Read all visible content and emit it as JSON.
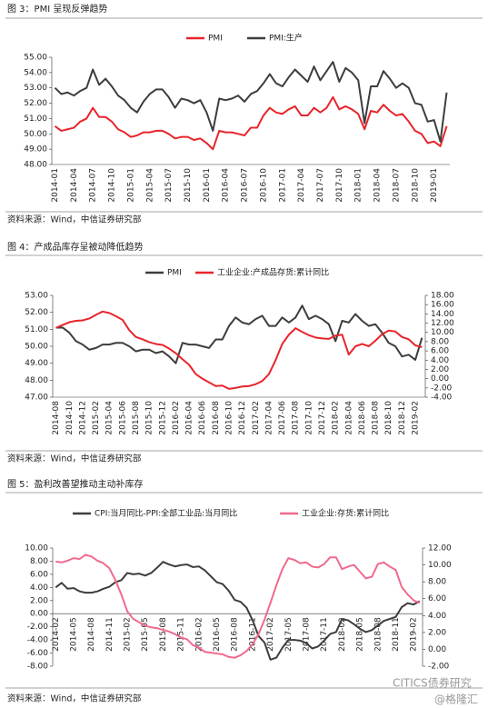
{
  "chart_data": [
    {
      "type": "line",
      "caption": "图 3：PMI 呈现反弹趋势",
      "source": "资料来源：Wind，中信证券研究部",
      "categories": [
        "2014-01",
        null,
        null,
        "2014-04",
        null,
        null,
        "2014-07",
        null,
        null,
        "2014-10",
        null,
        null,
        "2015-01",
        null,
        null,
        "2015-04",
        null,
        null,
        "2015-07",
        null,
        null,
        "2015-10",
        null,
        null,
        "2016-01",
        null,
        null,
        "2016-04",
        null,
        null,
        "2016-07",
        null,
        null,
        "2016-10",
        null,
        null,
        "2017-01",
        null,
        null,
        "2017-04",
        null,
        null,
        "2017-07",
        null,
        null,
        "2017-10",
        null,
        null,
        "2018-01",
        null,
        null,
        "2018-04",
        null,
        null,
        "2018-07",
        null,
        null,
        "2018-10",
        null,
        null,
        "2019-01",
        null,
        null
      ],
      "series": [
        {
          "name": "PMI",
          "color": "#e8242b",
          "values": [
            50.5,
            50.2,
            50.3,
            50.4,
            50.8,
            51.0,
            51.7,
            51.1,
            51.1,
            50.8,
            50.3,
            50.1,
            49.8,
            49.9,
            50.1,
            50.1,
            50.2,
            50.2,
            50.0,
            49.7,
            49.8,
            49.8,
            49.6,
            49.7,
            49.4,
            49.0,
            50.2,
            50.1,
            50.1,
            50.0,
            49.9,
            50.4,
            50.4,
            51.2,
            51.7,
            51.4,
            51.3,
            51.6,
            51.8,
            51.2,
            51.2,
            51.7,
            51.4,
            51.7,
            52.4,
            51.6,
            51.8,
            51.6,
            51.3,
            50.3,
            51.5,
            51.4,
            51.9,
            51.5,
            51.2,
            51.3,
            50.8,
            50.2,
            50.0,
            49.4,
            49.5,
            49.2,
            50.5
          ]
        },
        {
          "name": "PMI:生产",
          "color": "#3d3d3d",
          "values": [
            53.0,
            52.6,
            52.7,
            52.5,
            52.8,
            53.0,
            54.2,
            53.2,
            53.6,
            53.1,
            52.5,
            52.2,
            51.7,
            51.4,
            52.1,
            52.6,
            52.9,
            52.9,
            52.4,
            51.7,
            52.3,
            52.2,
            52.0,
            52.2,
            51.4,
            50.2,
            52.3,
            52.2,
            52.3,
            52.5,
            52.1,
            52.6,
            52.8,
            53.3,
            53.9,
            53.3,
            53.1,
            53.7,
            54.2,
            53.8,
            53.4,
            54.4,
            53.5,
            54.1,
            54.7,
            53.4,
            54.3,
            54.0,
            53.5,
            50.7,
            53.1,
            53.1,
            54.1,
            53.6,
            53.0,
            53.3,
            53.0,
            52.0,
            51.9,
            50.8,
            50.9,
            49.5,
            52.7
          ]
        }
      ],
      "ylim": [
        48,
        55
      ],
      "yticks": [
        {
          "value": 48,
          "label": "48.00"
        },
        {
          "value": 49,
          "label": "49.00"
        },
        {
          "value": 50,
          "label": "50.00"
        },
        {
          "value": 51,
          "label": "51.00"
        },
        {
          "value": 52,
          "label": "52.00"
        },
        {
          "value": 53,
          "label": "53.00"
        },
        {
          "value": 54,
          "label": "54.00"
        },
        {
          "value": 55,
          "label": "55.00"
        }
      ]
    },
    {
      "type": "line",
      "caption": "图 4：产成品库存呈被动降低趋势",
      "source": "资料来源：Wind，中信证券研究部",
      "categories": [
        "2014-08",
        null,
        "2014-10",
        null,
        "2014-12",
        null,
        "2015-02",
        null,
        "2015-04",
        null,
        "2015-06",
        null,
        "2015-08",
        null,
        "2015-10",
        null,
        "2015-12",
        null,
        "2016-02",
        null,
        "2016-04",
        null,
        "2016-06",
        null,
        "2016-08",
        null,
        "2016-10",
        null,
        "2016-12",
        null,
        "2017-02",
        null,
        "2017-04",
        null,
        "2017-06",
        null,
        "2017-08",
        null,
        "2017-10",
        null,
        "2017-12",
        null,
        "2018-02",
        null,
        "2018-04",
        null,
        "2018-06",
        null,
        "2018-08",
        null,
        "2018-10",
        null,
        "2018-12",
        null,
        "2019-02",
        null
      ],
      "series": [
        {
          "name": "PMI",
          "color": "#3d3d3d",
          "values": [
            51.1,
            51.1,
            50.8,
            50.3,
            50.1,
            49.8,
            49.9,
            50.1,
            50.1,
            50.2,
            50.2,
            50.0,
            49.7,
            49.8,
            49.8,
            49.6,
            49.7,
            49.4,
            49.0,
            50.2,
            50.1,
            50.1,
            50.0,
            49.9,
            50.4,
            50.4,
            51.2,
            51.7,
            51.4,
            51.3,
            51.6,
            51.8,
            51.2,
            51.2,
            51.7,
            51.4,
            51.7,
            52.4,
            51.6,
            51.8,
            51.6,
            51.3,
            50.3,
            51.5,
            51.4,
            51.9,
            51.5,
            51.2,
            51.3,
            50.8,
            50.2,
            50.0,
            49.4,
            49.5,
            49.2,
            50.5
          ]
        },
        {
          "name": "工业企业:产成品存货:累计同比",
          "color": "#e8242b",
          "axis": "y2",
          "values": [
            11.0,
            11.6,
            12.2,
            12.5,
            12.6,
            13.0,
            13.8,
            14.5,
            14.2,
            13.5,
            12.7,
            10.5,
            9.0,
            8.5,
            7.9,
            7.5,
            7.3,
            6.5,
            5.5,
            4.2,
            3.0,
            1.0,
            0.0,
            -0.8,
            -1.6,
            -1.5,
            -2.2,
            -2.0,
            -1.7,
            -1.6,
            -1.2,
            -0.5,
            1.0,
            4.0,
            7.5,
            9.5,
            10.9,
            10.1,
            9.4,
            8.9,
            8.7,
            8.6,
            9.3,
            9.5,
            5.2,
            7.0,
            7.5,
            7.0,
            8.2,
            9.6,
            10.4,
            10.2,
            9.0,
            8.5,
            7.2,
            6.8
          ]
        }
      ],
      "ylim": [
        47,
        53
      ],
      "yticks": [
        {
          "value": 47,
          "label": "47.00"
        },
        {
          "value": 48,
          "label": "48.00"
        },
        {
          "value": 49,
          "label": "49.00"
        },
        {
          "value": 50,
          "label": "50.00"
        },
        {
          "value": 51,
          "label": "51.00"
        },
        {
          "value": 52,
          "label": "52.00"
        },
        {
          "value": 53,
          "label": "53.00"
        }
      ],
      "y2lim": [
        -4,
        18
      ],
      "y2ticks": [
        {
          "value": -4,
          "label": "-4.00"
        },
        {
          "value": -2,
          "label": "-2.00"
        },
        {
          "value": 0,
          "label": "0.00"
        },
        {
          "value": 2,
          "label": "2.00"
        },
        {
          "value": 4,
          "label": "4.00"
        },
        {
          "value": 6,
          "label": "6.00"
        },
        {
          "value": 8,
          "label": "8.00"
        },
        {
          "value": 10,
          "label": "10.00"
        },
        {
          "value": 12,
          "label": "12.00"
        },
        {
          "value": 14,
          "label": "14.00"
        },
        {
          "value": 16,
          "label": "16.00"
        },
        {
          "value": 18,
          "label": "18.00"
        }
      ]
    },
    {
      "type": "line",
      "caption": "图 5：盈利改善望推动主动补库存",
      "source": "资料来源：Wind，中信证券研究部",
      "categories": [
        "2014-02",
        null,
        null,
        "2014-05",
        null,
        null,
        "2014-08",
        null,
        null,
        "2014-11",
        null,
        null,
        "2015-02",
        null,
        null,
        "2015-05",
        null,
        null,
        "2015-08",
        null,
        null,
        "2015-11",
        null,
        null,
        "2016-02",
        null,
        null,
        "2016-05",
        null,
        null,
        "2016-08",
        null,
        null,
        "2016-11",
        null,
        null,
        "2017-02",
        null,
        null,
        "2017-05",
        null,
        null,
        "2017-08",
        null,
        null,
        "2017-11",
        null,
        null,
        "2018-02",
        null,
        null,
        "2018-05",
        null,
        null,
        "2018-08",
        null,
        null,
        "2018-11",
        null,
        null,
        "2019-02",
        null
      ],
      "series": [
        {
          "name": "CPI:当月同比-PPI:全部工业品:当月同比",
          "color": "#3d3d3d",
          "values": [
            4.0,
            4.7,
            3.8,
            3.9,
            3.4,
            3.2,
            3.2,
            3.4,
            3.8,
            4.1,
            4.8,
            5.1,
            6.2,
            6.0,
            6.1,
            5.8,
            6.2,
            7.0,
            7.9,
            7.5,
            7.2,
            7.4,
            7.5,
            7.1,
            7.2,
            6.6,
            5.7,
            4.8,
            4.5,
            3.5,
            2.1,
            1.8,
            0.9,
            -1.0,
            -3.4,
            -4.4,
            -7.0,
            -6.7,
            -5.2,
            -4.0,
            -4.0,
            -4.1,
            -4.5,
            -5.3,
            -5.0,
            -4.1,
            -3.1,
            -2.8,
            -0.8,
            -1.0,
            -1.6,
            -2.3,
            -2.8,
            -2.5,
            -1.8,
            -1.1,
            -0.8,
            -0.5,
            1.0,
            1.6,
            1.4,
            1.9
          ]
        },
        {
          "name": "工业企业:存货:累计同比",
          "color": "#f06a8c",
          "axis": "y2",
          "values": [
            10.4,
            10.3,
            10.5,
            10.8,
            10.7,
            11.2,
            11.0,
            10.5,
            10.2,
            9.6,
            8.2,
            6.5,
            4.5,
            3.6,
            3.2,
            2.8,
            2.6,
            2.5,
            2.3,
            2.1,
            1.8,
            1.4,
            1.2,
            0.5,
            0.2,
            -0.3,
            -0.4,
            -0.5,
            -0.6,
            -0.9,
            -1.0,
            -0.7,
            -0.2,
            0.6,
            1.8,
            3.5,
            5.5,
            7.6,
            9.5,
            10.8,
            10.6,
            10.2,
            10.3,
            9.8,
            9.7,
            10.1,
            10.9,
            10.9,
            9.5,
            9.8,
            10.0,
            9.2,
            8.4,
            8.6,
            10.1,
            10.3,
            9.8,
            9.4,
            7.4,
            6.5,
            5.8,
            5.5
          ]
        }
      ],
      "ylim": [
        -8,
        10
      ],
      "yticks": [
        {
          "value": -8,
          "label": "-8.00"
        },
        {
          "value": -6,
          "label": "-6.00"
        },
        {
          "value": -4,
          "label": "-4.00"
        },
        {
          "value": -2,
          "label": "-2.00"
        },
        {
          "value": 0,
          "label": "0.00"
        },
        {
          "value": 2,
          "label": "2.00"
        },
        {
          "value": 4,
          "label": "4.00"
        },
        {
          "value": 6,
          "label": "6.00"
        },
        {
          "value": 8,
          "label": "8.00"
        },
        {
          "value": 10,
          "label": "10.00"
        }
      ],
      "y2lim": [
        -2,
        12
      ],
      "y2ticks": [
        {
          "value": -2,
          "label": "-2.00"
        },
        {
          "value": 0,
          "label": "0.00"
        },
        {
          "value": 2,
          "label": "2.00"
        },
        {
          "value": 4,
          "label": "4.00"
        },
        {
          "value": 6,
          "label": "6.00"
        },
        {
          "value": 8,
          "label": "8.00"
        },
        {
          "value": 10,
          "label": "10.00"
        },
        {
          "value": 12,
          "label": "12.00"
        }
      ]
    }
  ],
  "watermark": {
    "brand": "CITICS债券研究",
    "handle": "@格隆汇"
  }
}
